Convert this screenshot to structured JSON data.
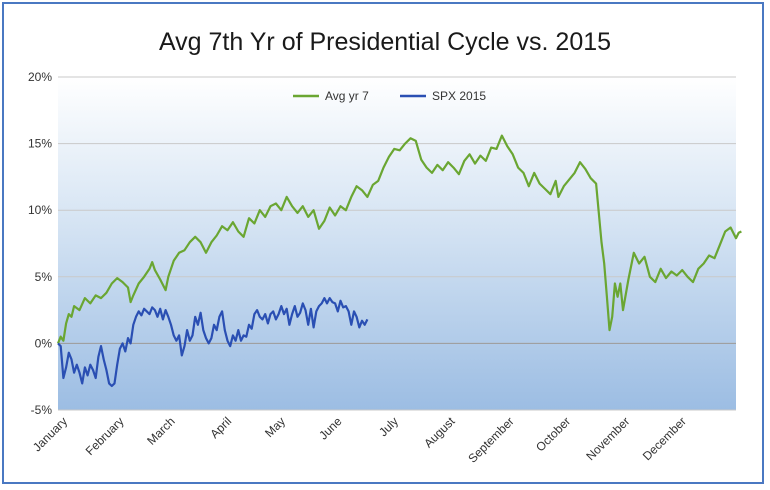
{
  "chart_data": {
    "type": "line",
    "title": "Avg 7th Yr of Presidential Cycle vs. 2015",
    "xlabel": "",
    "ylabel": "",
    "ylim": [
      -5,
      20
    ],
    "yticks": [
      -5,
      0,
      5,
      10,
      15,
      20
    ],
    "ytick_labels": [
      "-5%",
      "0%",
      "5%",
      "10%",
      "15%",
      "20%"
    ],
    "x_unit": "trading day of year",
    "xlim": [
      0,
      252
    ],
    "month_labels": [
      "January",
      "February",
      "March",
      "April",
      "May",
      "June",
      "July",
      "August",
      "September",
      "October",
      "November",
      "December"
    ],
    "month_tick_days": [
      0,
      21,
      40,
      61,
      81,
      102,
      123,
      144,
      166,
      187,
      209,
      230
    ],
    "grid": true,
    "legend_position": "top-center",
    "colors": {
      "avg": "#6aa632",
      "spx": "#2a4fb3",
      "border": "#4a78c2"
    },
    "series": [
      {
        "name": "Avg yr 7",
        "points": [
          [
            0,
            0.0
          ],
          [
            1,
            0.5
          ],
          [
            2,
            0.2
          ],
          [
            3,
            1.5
          ],
          [
            4,
            2.2
          ],
          [
            5,
            2.0
          ],
          [
            6,
            2.8
          ],
          [
            8,
            2.5
          ],
          [
            10,
            3.4
          ],
          [
            12,
            3.0
          ],
          [
            14,
            3.6
          ],
          [
            16,
            3.4
          ],
          [
            18,
            3.8
          ],
          [
            20,
            4.5
          ],
          [
            22,
            4.9
          ],
          [
            24,
            4.6
          ],
          [
            26,
            4.2
          ],
          [
            27,
            3.1
          ],
          [
            28,
            3.6
          ],
          [
            30,
            4.5
          ],
          [
            32,
            5.0
          ],
          [
            34,
            5.6
          ],
          [
            35,
            6.1
          ],
          [
            36,
            5.5
          ],
          [
            38,
            4.8
          ],
          [
            40,
            4.0
          ],
          [
            41,
            5.0
          ],
          [
            43,
            6.2
          ],
          [
            45,
            6.8
          ],
          [
            47,
            7.0
          ],
          [
            49,
            7.6
          ],
          [
            51,
            8.0
          ],
          [
            53,
            7.6
          ],
          [
            55,
            6.8
          ],
          [
            57,
            7.6
          ],
          [
            59,
            8.1
          ],
          [
            61,
            8.8
          ],
          [
            63,
            8.5
          ],
          [
            65,
            9.1
          ],
          [
            67,
            8.4
          ],
          [
            69,
            8.0
          ],
          [
            71,
            9.4
          ],
          [
            73,
            9.0
          ],
          [
            75,
            10.0
          ],
          [
            77,
            9.5
          ],
          [
            79,
            10.3
          ],
          [
            81,
            10.5
          ],
          [
            83,
            10.0
          ],
          [
            85,
            11.0
          ],
          [
            87,
            10.3
          ],
          [
            89,
            9.8
          ],
          [
            91,
            10.3
          ],
          [
            93,
            9.5
          ],
          [
            95,
            10.0
          ],
          [
            97,
            8.6
          ],
          [
            99,
            9.2
          ],
          [
            101,
            10.2
          ],
          [
            103,
            9.6
          ],
          [
            105,
            10.3
          ],
          [
            107,
            10.0
          ],
          [
            109,
            11.0
          ],
          [
            111,
            11.8
          ],
          [
            113,
            11.5
          ],
          [
            115,
            11.0
          ],
          [
            117,
            11.9
          ],
          [
            119,
            12.2
          ],
          [
            121,
            13.2
          ],
          [
            123,
            14.0
          ],
          [
            125,
            14.6
          ],
          [
            127,
            14.5
          ],
          [
            129,
            15.0
          ],
          [
            131,
            15.4
          ],
          [
            133,
            15.2
          ],
          [
            135,
            13.8
          ],
          [
            137,
            13.2
          ],
          [
            139,
            12.8
          ],
          [
            141,
            13.4
          ],
          [
            143,
            13.0
          ],
          [
            145,
            13.6
          ],
          [
            147,
            13.2
          ],
          [
            149,
            12.7
          ],
          [
            151,
            13.7
          ],
          [
            153,
            14.2
          ],
          [
            155,
            13.5
          ],
          [
            157,
            14.1
          ],
          [
            159,
            13.7
          ],
          [
            161,
            14.7
          ],
          [
            163,
            14.6
          ],
          [
            165,
            15.6
          ],
          [
            167,
            14.8
          ],
          [
            169,
            14.2
          ],
          [
            171,
            13.2
          ],
          [
            173,
            12.8
          ],
          [
            175,
            11.8
          ],
          [
            177,
            12.8
          ],
          [
            179,
            12.0
          ],
          [
            181,
            11.6
          ],
          [
            183,
            11.2
          ],
          [
            185,
            12.2
          ],
          [
            186,
            11.0
          ],
          [
            188,
            11.8
          ],
          [
            190,
            12.3
          ],
          [
            192,
            12.8
          ],
          [
            194,
            13.6
          ],
          [
            196,
            13.1
          ],
          [
            198,
            12.4
          ],
          [
            200,
            12.0
          ],
          [
            201,
            9.8
          ],
          [
            202,
            7.6
          ],
          [
            203,
            6.0
          ],
          [
            204,
            3.5
          ],
          [
            205,
            1.0
          ],
          [
            206,
            2.0
          ],
          [
            207,
            4.5
          ],
          [
            208,
            3.5
          ],
          [
            209,
            4.5
          ],
          [
            210,
            2.5
          ],
          [
            212,
            4.8
          ],
          [
            214,
            6.8
          ],
          [
            216,
            6.0
          ],
          [
            218,
            6.5
          ],
          [
            220,
            5.0
          ],
          [
            222,
            4.6
          ],
          [
            224,
            5.6
          ],
          [
            226,
            4.9
          ],
          [
            228,
            5.4
          ],
          [
            230,
            5.1
          ],
          [
            232,
            5.5
          ],
          [
            234,
            5.0
          ],
          [
            236,
            4.6
          ],
          [
            238,
            5.6
          ],
          [
            240,
            6.0
          ],
          [
            242,
            6.6
          ],
          [
            244,
            6.4
          ],
          [
            246,
            7.4
          ],
          [
            248,
            8.4
          ],
          [
            250,
            8.7
          ],
          [
            252,
            7.9
          ],
          [
            253,
            8.3
          ],
          [
            254,
            8.4
          ]
        ]
      },
      {
        "name": "SPX 2015",
        "points": [
          [
            0,
            0.0
          ],
          [
            1,
            -0.2
          ],
          [
            2,
            -2.6
          ],
          [
            3,
            -1.8
          ],
          [
            4,
            -0.7
          ],
          [
            5,
            -1.2
          ],
          [
            6,
            -2.2
          ],
          [
            7,
            -1.6
          ],
          [
            8,
            -2.2
          ],
          [
            9,
            -3.0
          ],
          [
            10,
            -1.8
          ],
          [
            11,
            -2.4
          ],
          [
            12,
            -1.6
          ],
          [
            13,
            -2.0
          ],
          [
            14,
            -2.6
          ],
          [
            15,
            -1.0
          ],
          [
            16,
            -0.2
          ],
          [
            17,
            -1.2
          ],
          [
            18,
            -2.0
          ],
          [
            19,
            -3.0
          ],
          [
            20,
            -3.2
          ],
          [
            21,
            -3.0
          ],
          [
            22,
            -1.6
          ],
          [
            23,
            -0.4
          ],
          [
            24,
            0.0
          ],
          [
            25,
            -0.6
          ],
          [
            26,
            0.4
          ],
          [
            27,
            0.0
          ],
          [
            28,
            1.4
          ],
          [
            29,
            2.0
          ],
          [
            30,
            2.4
          ],
          [
            31,
            2.1
          ],
          [
            32,
            2.6
          ],
          [
            33,
            2.4
          ],
          [
            34,
            2.2
          ],
          [
            35,
            2.7
          ],
          [
            36,
            2.5
          ],
          [
            37,
            2.0
          ],
          [
            38,
            2.6
          ],
          [
            39,
            1.8
          ],
          [
            40,
            2.5
          ],
          [
            41,
            2.0
          ],
          [
            42,
            1.4
          ],
          [
            43,
            0.6
          ],
          [
            44,
            0.2
          ],
          [
            45,
            0.6
          ],
          [
            46,
            -0.9
          ],
          [
            47,
            -0.2
          ],
          [
            48,
            1.0
          ],
          [
            49,
            0.2
          ],
          [
            50,
            0.6
          ],
          [
            51,
            2.0
          ],
          [
            52,
            1.4
          ],
          [
            53,
            2.3
          ],
          [
            54,
            1.0
          ],
          [
            55,
            0.4
          ],
          [
            56,
            0.0
          ],
          [
            57,
            0.4
          ],
          [
            58,
            1.4
          ],
          [
            59,
            1.0
          ],
          [
            60,
            2.0
          ],
          [
            61,
            2.4
          ],
          [
            62,
            1.0
          ],
          [
            63,
            0.2
          ],
          [
            64,
            -0.2
          ],
          [
            65,
            0.6
          ],
          [
            66,
            0.2
          ],
          [
            67,
            1.0
          ],
          [
            68,
            0.2
          ],
          [
            69,
            0.6
          ],
          [
            70,
            0.5
          ],
          [
            71,
            1.4
          ],
          [
            72,
            1.1
          ],
          [
            73,
            2.2
          ],
          [
            74,
            2.5
          ],
          [
            75,
            2.0
          ],
          [
            76,
            1.8
          ],
          [
            77,
            2.2
          ],
          [
            78,
            1.5
          ],
          [
            79,
            2.2
          ],
          [
            80,
            2.4
          ],
          [
            81,
            1.8
          ],
          [
            82,
            2.2
          ],
          [
            83,
            2.8
          ],
          [
            84,
            2.2
          ],
          [
            85,
            2.6
          ],
          [
            86,
            1.4
          ],
          [
            87,
            2.2
          ],
          [
            88,
            2.8
          ],
          [
            89,
            2.0
          ],
          [
            90,
            2.3
          ],
          [
            91,
            3.0
          ],
          [
            92,
            2.5
          ],
          [
            93,
            1.4
          ],
          [
            94,
            2.6
          ],
          [
            95,
            1.2
          ],
          [
            96,
            2.4
          ],
          [
            97,
            2.8
          ],
          [
            98,
            3.0
          ],
          [
            99,
            3.4
          ],
          [
            100,
            3.0
          ],
          [
            101,
            3.4
          ],
          [
            102,
            3.1
          ],
          [
            103,
            3.0
          ],
          [
            104,
            2.4
          ],
          [
            105,
            3.2
          ],
          [
            106,
            2.7
          ],
          [
            107,
            2.8
          ],
          [
            108,
            2.4
          ],
          [
            109,
            1.4
          ],
          [
            110,
            2.4
          ],
          [
            111,
            2.0
          ],
          [
            112,
            1.2
          ],
          [
            113,
            1.7
          ],
          [
            114,
            1.4
          ],
          [
            115,
            1.8
          ]
        ]
      }
    ]
  }
}
